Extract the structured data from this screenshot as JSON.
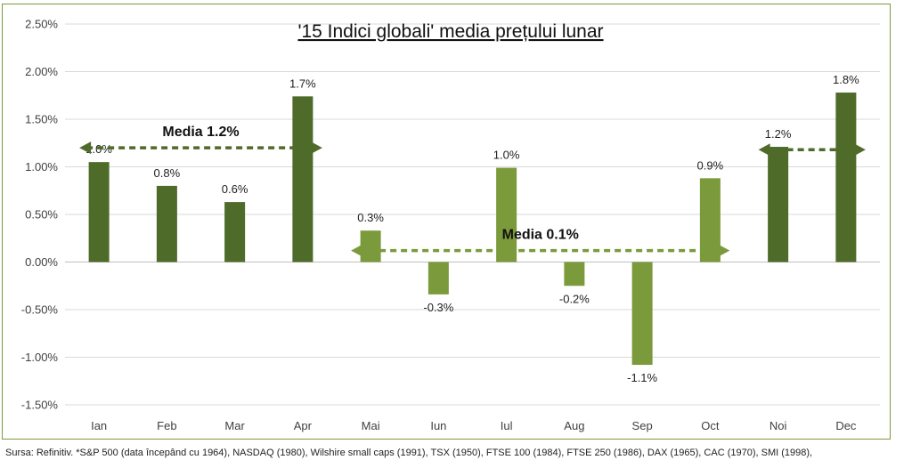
{
  "chart_data": {
    "type": "bar",
    "title": "'15 Indici globali' media prețului lunar",
    "xlabel": "",
    "ylabel": "",
    "categories": [
      "Ian",
      "Feb",
      "Mar",
      "Apr",
      "Mai",
      "Iun",
      "Iul",
      "Aug",
      "Sep",
      "Oct",
      "Noi",
      "Dec"
    ],
    "values": [
      1.05,
      0.8,
      0.63,
      1.74,
      0.33,
      -0.34,
      0.99,
      -0.25,
      -1.08,
      0.88,
      1.21,
      1.78
    ],
    "data_labels": [
      "1.0%",
      "0.8%",
      "0.6%",
      "1.7%",
      "0.3%",
      "-0.3%",
      "1.0%",
      "-0.2%",
      "-1.1%",
      "0.9%",
      "1.2%",
      "1.8%"
    ],
    "y_ticks": [
      2.5,
      2.0,
      1.5,
      1.0,
      0.5,
      0.0,
      -0.5,
      -1.0,
      -1.5
    ],
    "y_tick_labels": [
      "2.50%",
      "2.00%",
      "1.50%",
      "1.00%",
      "0.50%",
      "0.00%",
      "-0.50%",
      "-1.00%",
      "-1.50%"
    ],
    "ylim": [
      -1.5,
      2.5
    ],
    "grid": true,
    "legend": "none",
    "colors": {
      "dark": "#4e6b2a",
      "light": "#7a9a3c",
      "frame": "#7d9a3a"
    },
    "bar_shade": [
      "dark",
      "dark",
      "dark",
      "dark",
      "light",
      "light",
      "light",
      "light",
      "light",
      "light",
      "dark",
      "dark"
    ],
    "annotations": [
      {
        "text": "Media 1.2%",
        "value": 1.2,
        "shade": "dark",
        "covers": [
          "Ian",
          "Apr"
        ]
      },
      {
        "text": "Media 0.1%",
        "value": 0.12,
        "shade": "light",
        "covers": [
          "Mai",
          "Oct"
        ]
      },
      {
        "text": "",
        "value": 1.18,
        "shade": "dark",
        "covers": [
          "Noi",
          "Dec"
        ]
      }
    ]
  },
  "source_note": "Sursa: Refinitiv. *S&P 500 (data începând cu 1964), NASDAQ (1980), Wilshire small caps (1991), TSX (1950), FTSE 100 (1984), FTSE 250 (1986), DAX (1965), CAC (1970), SMI (1998),"
}
